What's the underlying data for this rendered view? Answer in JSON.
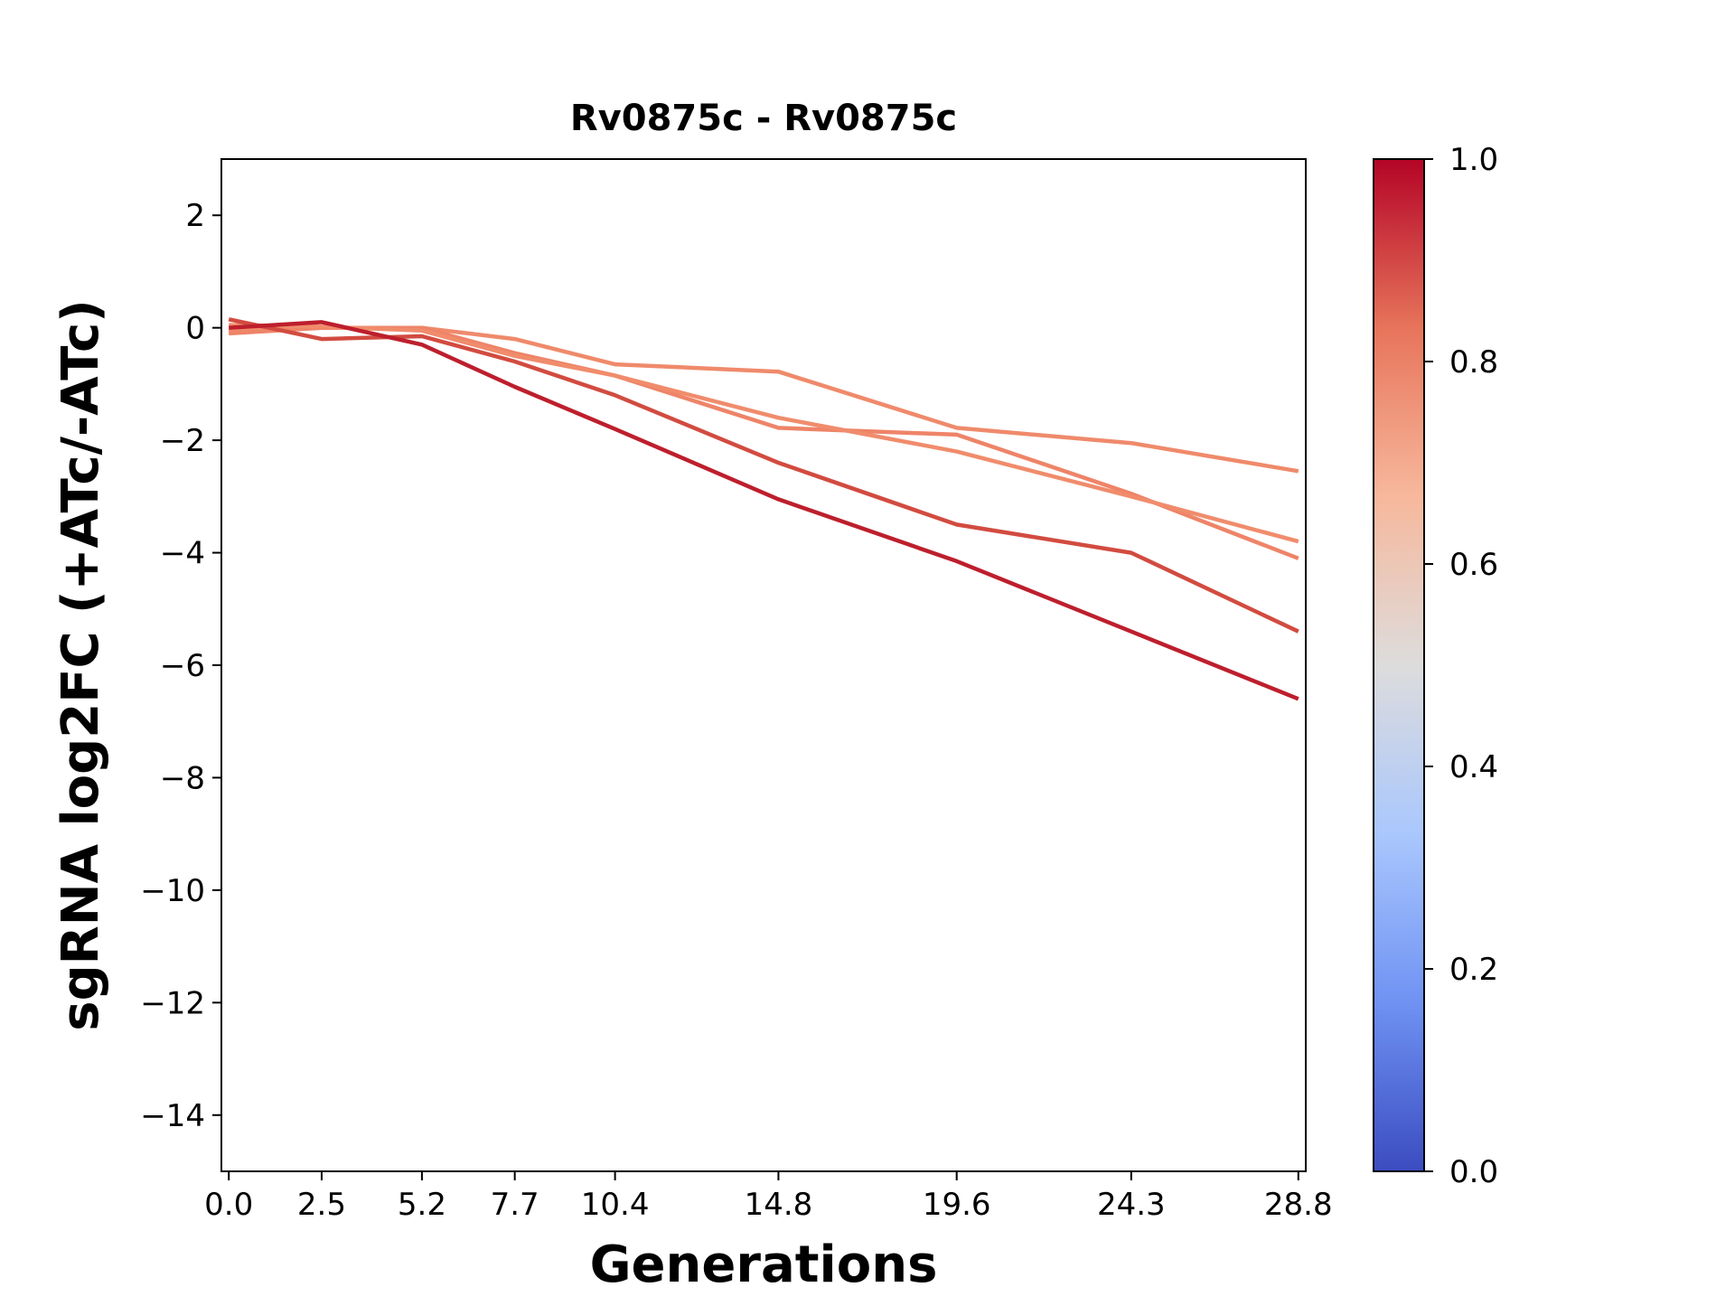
{
  "chart_data": {
    "type": "line",
    "title": "Rv0875c - Rv0875c",
    "xlabel": "Generations",
    "ylabel": "sgRNA log2FC (+ATc/-ATc)",
    "x": [
      0.0,
      2.5,
      5.2,
      7.7,
      10.4,
      14.8,
      19.6,
      24.3,
      28.8
    ],
    "x_tick_labels": [
      "0.0",
      "2.5",
      "5.2",
      "7.7",
      "10.4",
      "14.8",
      "19.6",
      "24.3",
      "28.8"
    ],
    "xlim": [
      -0.2,
      29.0
    ],
    "ylim": [
      -15,
      3
    ],
    "y_ticks": [
      2,
      0,
      -2,
      -4,
      -6,
      -8,
      -10,
      -12,
      -14
    ],
    "y_tick_labels": [
      "2",
      "0",
      "−2",
      "−4",
      "−6",
      "−8",
      "−10",
      "−12",
      "−14"
    ],
    "grid": false,
    "legend": "none",
    "colormap": "coolwarm",
    "colorbar": {
      "range": [
        0.0,
        1.0
      ],
      "ticks": [
        0.0,
        0.2,
        0.4,
        0.6,
        0.8,
        1.0
      ],
      "tick_labels": [
        "0.0",
        "0.2",
        "0.4",
        "0.6",
        "0.8",
        "1.0"
      ],
      "stops": [
        "#3b4cc0",
        "#6f92f3",
        "#aac7fd",
        "#dddcdc",
        "#f7b89c",
        "#e7745b",
        "#b40426"
      ]
    },
    "series": [
      {
        "score": 0.74,
        "color": "#ef8a6b",
        "values": [
          -0.05,
          0.0,
          0.0,
          -0.2,
          -0.65,
          -0.78,
          -1.78,
          -2.05,
          -2.55
        ]
      },
      {
        "score": 0.78,
        "color": "#ee8468",
        "values": [
          -0.1,
          0.0,
          0.0,
          -0.45,
          -0.85,
          -1.78,
          -1.9,
          -2.95,
          -4.1
        ]
      },
      {
        "score": 0.76,
        "color": "#f08c6c",
        "values": [
          0.05,
          0.02,
          -0.05,
          -0.5,
          -0.85,
          -1.6,
          -2.2,
          -3.0,
          -3.8
        ]
      },
      {
        "score": 0.9,
        "color": "#d24b40",
        "values": [
          0.15,
          -0.2,
          -0.15,
          -0.6,
          -1.2,
          -2.4,
          -3.5,
          -4.0,
          -5.4
        ]
      },
      {
        "score": 0.98,
        "color": "#bd1f2d",
        "values": [
          0.0,
          0.1,
          -0.3,
          -1.05,
          -1.8,
          -3.05,
          -4.15,
          -5.4,
          -6.6
        ]
      }
    ]
  }
}
